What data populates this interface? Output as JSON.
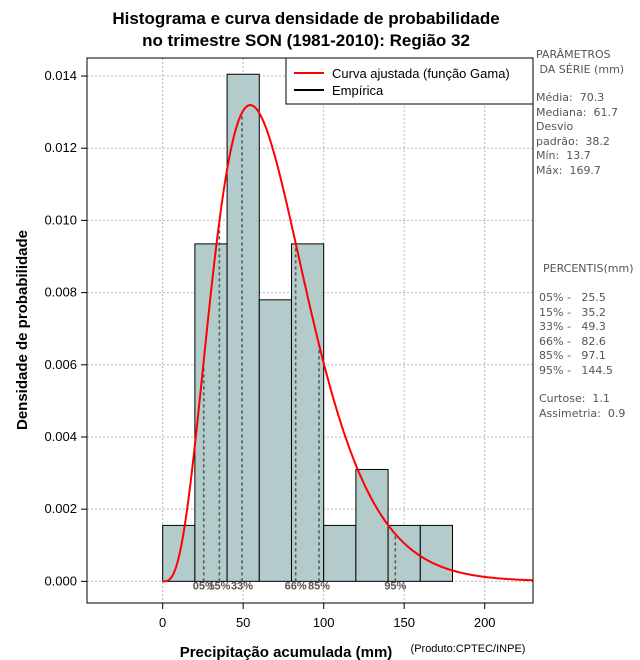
{
  "chart_data": {
    "type": "histogram",
    "title": [
      "Histograma e curva densidade de probabilidade",
      "no trimestre SON (1981-2010): Região 32"
    ],
    "xlabel": "Precipitação acumulada (mm)",
    "ylabel": "Densidade de probabilidade",
    "credit": "(Produto:CPTEC/INPE)",
    "xlim": [
      -47,
      230
    ],
    "ylim": [
      -0.0006,
      0.0145
    ],
    "xticks": [
      0,
      50,
      100,
      150,
      200
    ],
    "yticks": [
      0.0,
      0.002,
      0.004,
      0.006,
      0.008,
      0.01,
      0.012,
      0.014
    ],
    "ytick_labels": [
      "0.000",
      "0.002",
      "0.004",
      "0.006",
      "0.008",
      "0.010",
      "0.012",
      "0.014"
    ],
    "grid": true,
    "bins": [
      {
        "from": 0,
        "to": 20,
        "density": 0.00155
      },
      {
        "from": 20,
        "to": 40,
        "density": 0.00935
      },
      {
        "from": 40,
        "to": 60,
        "density": 0.01405
      },
      {
        "from": 60,
        "to": 80,
        "density": 0.0078
      },
      {
        "from": 80,
        "to": 100,
        "density": 0.00935
      },
      {
        "from": 100,
        "to": 120,
        "density": 0.00155
      },
      {
        "from": 120,
        "to": 140,
        "density": 0.0031
      },
      {
        "from": 140,
        "to": 160,
        "density": 0.00155
      },
      {
        "from": 160,
        "to": 180,
        "density": 0.00155
      }
    ],
    "gamma_fit": {
      "shape": 4.4,
      "scale": 16.0,
      "x_from": 0,
      "x_to": 230
    },
    "percentile_markers": [
      {
        "value": 25.5,
        "label": "05%"
      },
      {
        "value": 35.2,
        "label": "15%"
      },
      {
        "value": 49.3,
        "label": "33%"
      },
      {
        "value": 82.6,
        "label": "66%"
      },
      {
        "value": 97.1,
        "label": "85%"
      },
      {
        "value": 144.5,
        "label": "95%"
      }
    ],
    "legend": {
      "position": "top-right",
      "entries": [
        {
          "label": "Curva ajustada (função Gama)",
          "color": "#ff0000"
        },
        {
          "label": "Empírica",
          "color": "#000000"
        }
      ]
    },
    "colors": {
      "bar_fill": "#b3cccb",
      "bar_stroke": "#000000",
      "curve": "#ff0000",
      "grid": "#b4b4b4",
      "marker": "#555555"
    }
  },
  "side_panel": {
    "series_title": [
      "PARÂMETROS",
      " DA SÉRIE (mm)"
    ],
    "stats": [
      "Média:  70.3",
      "Mediana:  61.7",
      "Desvio",
      "padrão:  38.2",
      "Mín:  13.7",
      "Máx:  169.7"
    ],
    "percentiles_title": "PERCENTIS(mm)",
    "percentiles": [
      "05% -   25.5",
      "15% -   35.2",
      "33% -   49.3",
      "66% -   82.6",
      "85% -   97.1",
      "95% -   144.5"
    ],
    "shape": [
      "Curtose:  1.1",
      "Assimetria:  0.9"
    ]
  }
}
